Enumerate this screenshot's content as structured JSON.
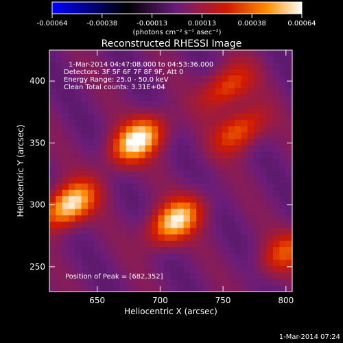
{
  "chart_data": {
    "type": "heatmap",
    "title": "Reconstructed RHESSI Image",
    "xlabel": "Heliocentric X (arcsec)",
    "ylabel": "Heliocentric Y (arcsec)",
    "xlim": [
      612,
      805
    ],
    "ylim": [
      230,
      425
    ],
    "x_ticks": [
      650,
      700,
      750,
      800
    ],
    "y_ticks": [
      250,
      300,
      350,
      400
    ],
    "colorbar": {
      "range": [
        -0.00064,
        0.00064
      ],
      "ticks": [
        "-0.00064",
        "-0.00038",
        "-0.00013",
        "0.00013",
        "0.00038",
        "0.00064"
      ],
      "unit_label": "(photons cm⁻² s⁻¹ asec⁻²)",
      "colormap": [
        "#0000ff",
        "#000000",
        "#6a1d7a",
        "#d11a00",
        "#ff8c00",
        "#ffffff"
      ]
    },
    "info_lines": [
      "1-Mar-2014 04:47:08.000 to 04:53:36.000",
      "Detectors: 3F 5F 6F 7F 8F 9F, Att 0",
      "Energy Range: 25.0 - 50.0 keV",
      "Clean    Total counts: 3.31E+04"
    ],
    "peak_label": "Position of Peak = [682,352]",
    "sources": [
      {
        "x": 682,
        "y": 352,
        "intensity": 0.00064
      },
      {
        "x": 628,
        "y": 300,
        "intensity": 0.00062
      },
      {
        "x": 712,
        "y": 287,
        "intensity": 0.00058
      },
      {
        "x": 763,
        "y": 360,
        "intensity": 0.00036
      },
      {
        "x": 753,
        "y": 395,
        "intensity": 0.00034
      },
      {
        "x": 800,
        "y": 262,
        "intensity": 0.0003
      }
    ]
  },
  "footer_date": "1-Mar-2014 07:24"
}
